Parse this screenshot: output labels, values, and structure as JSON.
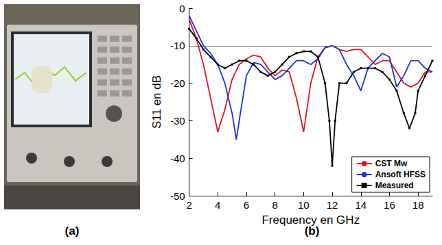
{
  "panel_labels": [
    "(a)",
    "(b)"
  ],
  "chart_data": {
    "type": "line",
    "x_label": "Frequency en GHz",
    "y_label": "S11 en dB",
    "xlim": [
      2,
      19
    ],
    "xticks": [
      2,
      4,
      6,
      8,
      10,
      12,
      14,
      16,
      18
    ],
    "ylim": [
      -50,
      0
    ],
    "yticks": [
      -50,
      -40,
      -30,
      -20,
      -10,
      0
    ],
    "reference_line": -10,
    "grid": false,
    "legend": "lower right",
    "series": [
      {
        "name": "CST Mw",
        "color": "#e8101a",
        "marker": "none",
        "line_style": "solid",
        "x": [
          2,
          2.5,
          3,
          3.5,
          4,
          4.5,
          5,
          5.5,
          6,
          6.5,
          7,
          7.5,
          8,
          8.5,
          9,
          9.5,
          10,
          10.5,
          11,
          11.5,
          12,
          12.5,
          13,
          13.5,
          14,
          14.5,
          15,
          15.5,
          16,
          16.5,
          17,
          17.5,
          18,
          18.5,
          19
        ],
        "values": [
          -3,
          -8,
          -15,
          -24,
          -33,
          -27,
          -19,
          -15,
          -13.5,
          -12.5,
          -13,
          -16,
          -18,
          -16.5,
          -17,
          -24,
          -33,
          -20,
          -13,
          -10.5,
          -10,
          -11,
          -11.5,
          -11,
          -11,
          -13,
          -15,
          -14,
          -14,
          -17,
          -20,
          -21,
          -20,
          -17,
          -17
        ]
      },
      {
        "name": "Ansoft HFSS",
        "color": "#1a2ee8",
        "marker": "none",
        "line_style": "solid",
        "x": [
          2,
          2.5,
          3,
          3.5,
          4,
          4.5,
          5,
          5.3,
          5.5,
          6,
          6.5,
          7,
          7.5,
          8,
          8.5,
          9,
          9.5,
          10,
          10.5,
          11,
          11.5,
          12,
          12.5,
          13,
          13.5,
          14,
          14.5,
          15,
          15.5,
          16,
          16.5,
          17,
          17.5,
          18,
          18.5,
          19
        ],
        "values": [
          -2,
          -6,
          -10,
          -12,
          -15,
          -20,
          -28,
          -35,
          -30,
          -18,
          -14.5,
          -15,
          -17,
          -19,
          -18,
          -16,
          -14,
          -14,
          -15,
          -13.5,
          -10.5,
          -10,
          -11,
          -15,
          -18,
          -22,
          -16,
          -14,
          -12,
          -13,
          -21,
          -18,
          -14,
          -14,
          -16,
          -17
        ]
      },
      {
        "name": "Measured",
        "color": "#000000",
        "marker": "square",
        "line_style": "solid",
        "x": [
          2,
          2.5,
          3,
          3.5,
          4,
          4.5,
          5,
          5.5,
          6,
          6.5,
          7,
          7.5,
          8,
          8.5,
          9,
          9.5,
          10,
          10.5,
          11,
          11.5,
          11.8,
          12,
          12.2,
          12.5,
          13,
          13.5,
          14,
          14.5,
          15,
          15.5,
          16,
          16.5,
          17,
          17.4,
          17.8,
          18,
          18.5,
          19
        ],
        "values": [
          -5.5,
          -8,
          -11,
          -13,
          -15,
          -16,
          -15,
          -14,
          -14,
          -15,
          -17,
          -18,
          -17,
          -15,
          -13,
          -12,
          -11.5,
          -11.5,
          -13,
          -20,
          -30,
          -42,
          -30,
          -20,
          -20,
          -17,
          -16,
          -16,
          -16,
          -17,
          -19,
          -22,
          -28,
          -32,
          -28,
          -22,
          -18,
          -14
        ]
      }
    ]
  }
}
